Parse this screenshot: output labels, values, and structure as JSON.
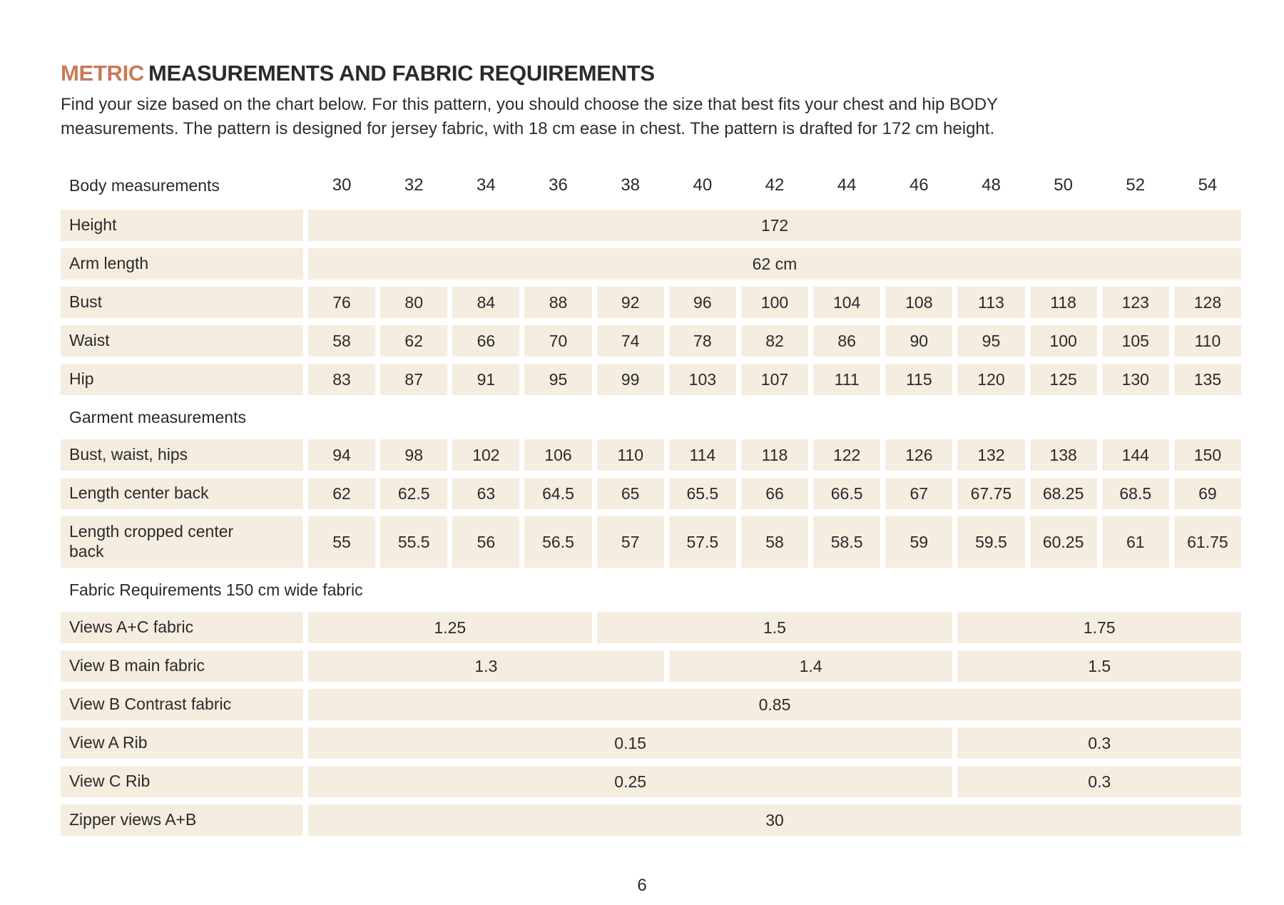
{
  "document": {
    "title_highlight": "METRIC",
    "title_rest": "MEASUREMENTS AND FABRIC REQUIREMENTS",
    "intro_line1": "Find your size based on the chart below. For this pattern, you should choose the size that best fits your chest and hip BODY",
    "intro_line2": "measurements. The pattern is designed for jersey fabric, with 18 cm ease in chest. The pattern is drafted for 172 cm height.",
    "page_number": "6"
  },
  "colors": {
    "accent": "#c87a58",
    "cell_background": "#f5eee0",
    "text": "#2a2a2a",
    "page_background": "#ffffff"
  },
  "chart_data": {
    "type": "table",
    "size_header_label": "Body measurements",
    "sizes": [
      "30",
      "32",
      "34",
      "36",
      "38",
      "40",
      "42",
      "44",
      "46",
      "48",
      "50",
      "52",
      "54"
    ],
    "sections": [
      {
        "title": null,
        "rows": [
          {
            "label": "Height",
            "cells": [
              {
                "span": 13,
                "value": "172"
              }
            ]
          },
          {
            "label": "Arm length",
            "cells": [
              {
                "span": 13,
                "value": "62 cm"
              }
            ]
          },
          {
            "label": "Bust",
            "values": [
              "76",
              "80",
              "84",
              "88",
              "92",
              "96",
              "100",
              "104",
              "108",
              "113",
              "118",
              "123",
              "128"
            ]
          },
          {
            "label": "Waist",
            "values": [
              "58",
              "62",
              "66",
              "70",
              "74",
              "78",
              "82",
              "86",
              "90",
              "95",
              "100",
              "105",
              "110"
            ]
          },
          {
            "label": "Hip",
            "values": [
              "83",
              "87",
              "91",
              "95",
              "99",
              "103",
              "107",
              "111",
              "115",
              "120",
              "125",
              "130",
              "135"
            ]
          }
        ]
      },
      {
        "title": "Garment measurements",
        "rows": [
          {
            "label": "Bust, waist, hips",
            "values": [
              "94",
              "98",
              "102",
              "106",
              "110",
              "114",
              "118",
              "122",
              "126",
              "132",
              "138",
              "144",
              "150"
            ]
          },
          {
            "label": "Length center back",
            "values": [
              "62",
              "62.5",
              "63",
              "64.5",
              "65",
              "65.5",
              "66",
              "66.5",
              "67",
              "67.75",
              "68.25",
              "68.5",
              "69"
            ]
          },
          {
            "label": "Length cropped center back",
            "tall": true,
            "values": [
              "55",
              "55.5",
              "56",
              "56.5",
              "57",
              "57.5",
              "58",
              "58.5",
              "59",
              "59.5",
              "60.25",
              "61",
              "61.75"
            ]
          }
        ]
      },
      {
        "title": "Fabric Requirements 150 cm wide fabric",
        "rows": [
          {
            "label": "Views A+C fabric",
            "cells": [
              {
                "span": 4,
                "value": "1.25"
              },
              {
                "span": 5,
                "value": "1.5"
              },
              {
                "span": 4,
                "value": "1.75"
              }
            ]
          },
          {
            "label": "View B main fabric",
            "cells": [
              {
                "span": 5,
                "value": "1.3"
              },
              {
                "span": 4,
                "value": "1.4"
              },
              {
                "span": 4,
                "value": "1.5"
              }
            ]
          },
          {
            "label": "View B Contrast fabric",
            "cells": [
              {
                "span": 13,
                "value": "0.85"
              }
            ]
          },
          {
            "label": "View A  Rib",
            "cells": [
              {
                "span": 9,
                "value": "0.15"
              },
              {
                "span": 4,
                "value": "0.3"
              }
            ]
          },
          {
            "label": "View C Rib",
            "cells": [
              {
                "span": 9,
                "value": "0.25"
              },
              {
                "span": 4,
                "value": "0.3"
              }
            ]
          },
          {
            "label": "Zipper views A+B",
            "cells": [
              {
                "span": 13,
                "value": "30"
              }
            ]
          }
        ]
      }
    ]
  }
}
